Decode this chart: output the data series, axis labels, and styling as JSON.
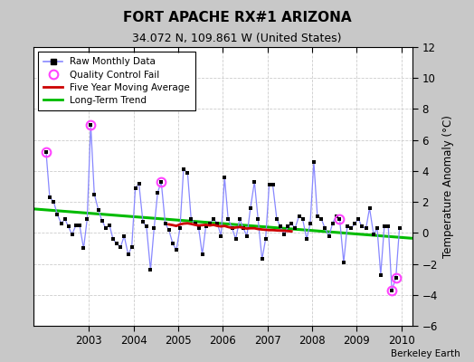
{
  "title": "FORT APACHE RX#1 ARIZONA",
  "subtitle": "34.072 N, 109.861 W (United States)",
  "ylabel": "Temperature Anomaly (°C)",
  "credit": "Berkeley Earth",
  "ylim": [
    -6,
    12
  ],
  "yticks": [
    -6,
    -4,
    -2,
    0,
    2,
    4,
    6,
    8,
    10,
    12
  ],
  "xlim": [
    2001.75,
    2010.25
  ],
  "xticks": [
    2003,
    2004,
    2005,
    2006,
    2007,
    2008,
    2009,
    2010
  ],
  "fig_bg": "#c8c8c8",
  "plot_bg": "#ffffff",
  "raw_x": [
    2002.04,
    2002.12,
    2002.21,
    2002.29,
    2002.38,
    2002.46,
    2002.54,
    2002.62,
    2002.71,
    2002.79,
    2002.88,
    2002.96,
    2003.04,
    2003.12,
    2003.21,
    2003.29,
    2003.38,
    2003.46,
    2003.54,
    2003.62,
    2003.71,
    2003.79,
    2003.88,
    2003.96,
    2004.04,
    2004.12,
    2004.21,
    2004.29,
    2004.38,
    2004.46,
    2004.54,
    2004.62,
    2004.71,
    2004.79,
    2004.88,
    2004.96,
    2005.04,
    2005.12,
    2005.21,
    2005.29,
    2005.38,
    2005.46,
    2005.54,
    2005.62,
    2005.71,
    2005.79,
    2005.88,
    2005.96,
    2006.04,
    2006.12,
    2006.21,
    2006.29,
    2006.38,
    2006.46,
    2006.54,
    2006.62,
    2006.71,
    2006.79,
    2006.88,
    2006.96,
    2007.04,
    2007.12,
    2007.21,
    2007.29,
    2007.38,
    2007.46,
    2007.54,
    2007.62,
    2007.71,
    2007.79,
    2007.88,
    2007.96,
    2008.04,
    2008.12,
    2008.21,
    2008.29,
    2008.38,
    2008.46,
    2008.54,
    2008.62,
    2008.71,
    2008.79,
    2008.88,
    2008.96,
    2009.04,
    2009.12,
    2009.21,
    2009.29,
    2009.38,
    2009.46,
    2009.54,
    2009.62,
    2009.71,
    2009.79,
    2009.88,
    2009.96
  ],
  "raw_y": [
    5.2,
    2.3,
    2.0,
    1.2,
    0.6,
    0.9,
    0.4,
    -0.1,
    0.5,
    0.5,
    -1.0,
    0.9,
    7.0,
    2.5,
    1.5,
    0.8,
    0.3,
    0.5,
    -0.4,
    -0.7,
    -0.9,
    -0.2,
    -1.4,
    -0.9,
    2.9,
    3.2,
    0.7,
    0.4,
    -2.4,
    0.3,
    2.6,
    3.3,
    0.6,
    0.2,
    -0.7,
    -1.1,
    0.3,
    4.1,
    3.9,
    0.9,
    0.6,
    0.3,
    -1.4,
    0.4,
    0.6,
    0.9,
    0.6,
    -0.2,
    3.6,
    0.9,
    0.3,
    -0.4,
    0.9,
    0.3,
    -0.2,
    1.6,
    3.3,
    0.9,
    -1.7,
    -0.4,
    3.1,
    3.1,
    0.9,
    0.4,
    -0.1,
    0.4,
    0.6,
    0.3,
    1.1,
    0.9,
    -0.4,
    0.6,
    4.6,
    1.1,
    0.9,
    0.3,
    -0.2,
    0.6,
    1.1,
    0.9,
    -1.9,
    0.4,
    0.3,
    0.6,
    0.9,
    0.4,
    0.3,
    1.6,
    -0.1,
    0.3,
    -2.7,
    0.4,
    0.4,
    -3.7,
    -2.9,
    0.3
  ],
  "qc_fail_x": [
    2002.04,
    2003.04,
    2004.62,
    2008.62,
    2009.79,
    2009.88
  ],
  "qc_fail_y": [
    5.2,
    7.0,
    3.3,
    0.9,
    -3.7,
    -2.9
  ],
  "moving_avg_x": [
    2004.79,
    2004.88,
    2004.96,
    2005.04,
    2005.12,
    2005.21,
    2005.29,
    2005.38,
    2005.46,
    2005.54,
    2005.62,
    2005.71,
    2005.79,
    2005.88,
    2005.96,
    2006.04,
    2006.12,
    2006.21,
    2006.29,
    2006.38,
    2006.46,
    2006.54,
    2006.62,
    2006.71,
    2006.79,
    2006.88,
    2006.96,
    2007.04,
    2007.12,
    2007.21,
    2007.29,
    2007.38,
    2007.46,
    2007.54
  ],
  "moving_avg_y": [
    0.55,
    0.5,
    0.45,
    0.55,
    0.6,
    0.62,
    0.58,
    0.52,
    0.48,
    0.5,
    0.52,
    0.48,
    0.52,
    0.45,
    0.42,
    0.45,
    0.38,
    0.32,
    0.35,
    0.38,
    0.32,
    0.28,
    0.3,
    0.3,
    0.25,
    0.22,
    0.2,
    0.18,
    0.18,
    0.16,
    0.15,
    0.14,
    0.12,
    0.1
  ],
  "trend_x": [
    2001.75,
    2010.25
  ],
  "trend_y": [
    1.55,
    -0.35
  ],
  "line_color": "#8888ff",
  "marker_color": "#000000",
  "qc_color": "#ff44ff",
  "moving_avg_color": "#cc0000",
  "trend_color": "#00bb00",
  "grid_color": "#cccccc",
  "spine_color": "#aaaaaa"
}
